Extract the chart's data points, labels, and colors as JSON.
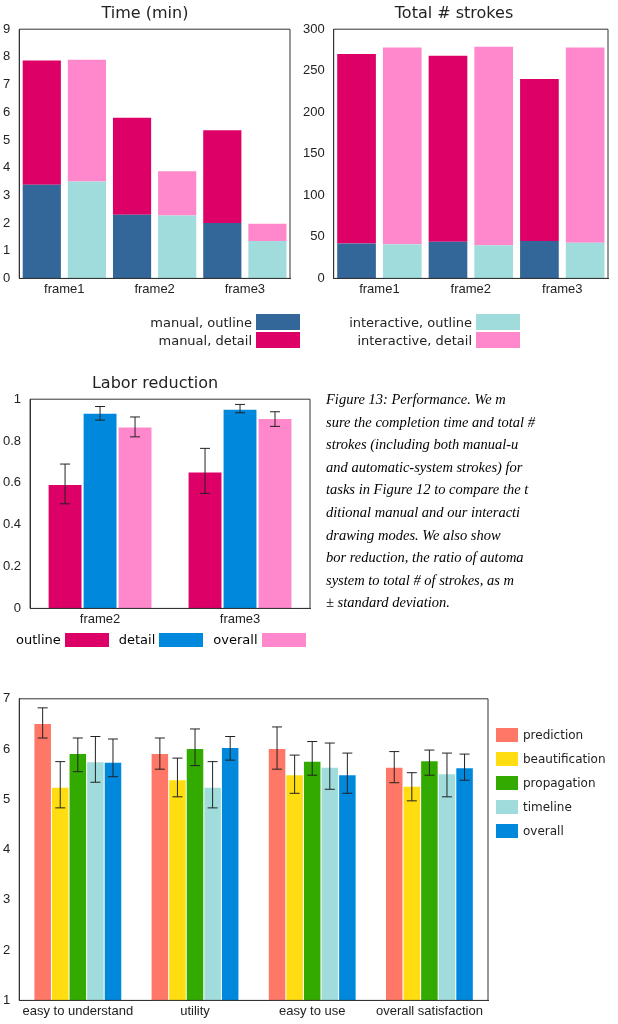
{
  "chart_data": [
    {
      "type": "bar",
      "title": "Time (min)",
      "categories": [
        "frame1",
        null,
        "frame2",
        null,
        "frame3",
        null
      ],
      "stacked": true,
      "ylim": [
        0,
        9
      ],
      "yticks": [
        0,
        1,
        2,
        3,
        4,
        5,
        6,
        7,
        8,
        9
      ],
      "legend": "bottom",
      "series": [
        {
          "name": "manual, outline",
          "color": "#336699",
          "values": [
            3.38,
            null,
            2.3,
            null,
            2.0,
            null
          ]
        },
        {
          "name": "manual, detail",
          "color": "#dd0066",
          "values": [
            4.49,
            null,
            3.5,
            null,
            3.35,
            null
          ]
        },
        {
          "color": "#a0dcdc",
          "values": [
            null,
            3.5,
            null,
            2.27,
            null,
            1.35
          ]
        },
        {
          "color": "#ff88cc",
          "values": [
            null,
            4.4,
            null,
            1.6,
            null,
            0.62
          ]
        }
      ]
    },
    {
      "type": "bar",
      "title": "Total # strokes",
      "categories": [
        "frame1",
        null,
        "frame2",
        null,
        "frame3",
        null
      ],
      "stacked": true,
      "ylim": [
        0,
        300
      ],
      "yticks": [
        0,
        50,
        100,
        150,
        200,
        250,
        300
      ],
      "legend": "bottom",
      "series": [
        {
          "color": "#336699",
          "values": [
            42,
            null,
            44,
            null,
            45,
            null
          ]
        },
        {
          "color": "#dd0066",
          "values": [
            228,
            null,
            224,
            null,
            195,
            null
          ]
        },
        {
          "name": "interactive, outline",
          "color": "#a0dcdc",
          "values": [
            null,
            41,
            null,
            40,
            null,
            43
          ]
        },
        {
          "name": "interactive, detail",
          "color": "#ff88cc",
          "values": [
            null,
            237,
            null,
            239,
            null,
            235
          ]
        }
      ]
    },
    {
      "type": "bar",
      "title": "Labor reduction",
      "categories": [
        "frame2",
        "frame3"
      ],
      "ylim": [
        0,
        1
      ],
      "yticks": [
        0,
        0.2,
        0.4,
        0.6,
        0.8,
        1
      ],
      "legend": "bottom",
      "series": [
        {
          "name": "outline",
          "color": "#dd0066",
          "values": [
            0.59,
            0.65
          ],
          "errors": [
            [
              0.5,
              0.69
            ],
            [
              0.55,
              0.765
            ]
          ]
        },
        {
          "name": "detail",
          "color": "#0088dd",
          "values": [
            0.93,
            0.95
          ],
          "errors": [
            [
              0.9,
              0.965
            ],
            [
              0.935,
              0.975
            ]
          ]
        },
        {
          "name": "overall",
          "color": "#ff88cc",
          "values": [
            0.865,
            0.905
          ],
          "errors": [
            [
              0.82,
              0.915
            ],
            [
              0.87,
              0.94
            ]
          ]
        }
      ]
    },
    {
      "type": "other",
      "annotations": [
        "Figure 13: Performance. We m",
        "sure the completion time and total #",
        "strokes (including both manual-u",
        "and automatic-system strokes) for",
        "tasks in Figure 12 to compare the t",
        "ditional manual and our interacti",
        "drawing modes. We also show",
        "bor reduction, the ratio of automa",
        "system to total # of strokes, as m",
        "± standard deviation."
      ]
    },
    {
      "type": "bar",
      "categories": [
        "easy to understand",
        "utility",
        "easy to use",
        "overall satisfaction"
      ],
      "ylim": [
        1,
        7
      ],
      "yticks": [
        1,
        2,
        3,
        4,
        5,
        6,
        7
      ],
      "legend": "right",
      "series": [
        {
          "name": "prediction",
          "color": "#ff7766",
          "values": [
            6.5,
            5.9,
            6.0,
            5.63
          ],
          "errors": [
            [
              6.22,
              6.82
            ],
            [
              5.6,
              6.22
            ],
            [
              5.6,
              6.44
            ],
            [
              5.33,
              5.95
            ]
          ]
        },
        {
          "name": "beautification",
          "color": "#ffdd11",
          "values": [
            5.23,
            5.38,
            5.48,
            5.25
          ],
          "errors": [
            [
              4.83,
              5.75
            ],
            [
              5.05,
              5.82
            ],
            [
              5.12,
              5.88
            ],
            [
              4.97,
              5.53
            ]
          ]
        },
        {
          "name": "propagation",
          "color": "#33aa00",
          "values": [
            5.9,
            6.0,
            5.75,
            5.76
          ],
          "errors": [
            [
              5.55,
              6.22
            ],
            [
              5.67,
              6.4
            ],
            [
              5.48,
              6.15
            ],
            [
              5.48,
              5.98
            ]
          ]
        },
        {
          "name": "timeline",
          "color": "#a0dcdc",
          "values": [
            5.74,
            5.23,
            5.63,
            5.5
          ],
          "errors": [
            [
              5.34,
              6.25
            ],
            [
              4.83,
              5.75
            ],
            [
              5.2,
              6.12
            ],
            [
              5.05,
              5.92
            ]
          ]
        },
        {
          "name": "overall",
          "color": "#0088dd",
          "values": [
            5.73,
            6.02,
            5.48,
            5.62
          ],
          "errors": [
            [
              5.45,
              6.2
            ],
            [
              5.78,
              6.25
            ],
            [
              5.12,
              5.92
            ],
            [
              5.38,
              5.9
            ]
          ]
        }
      ]
    }
  ]
}
